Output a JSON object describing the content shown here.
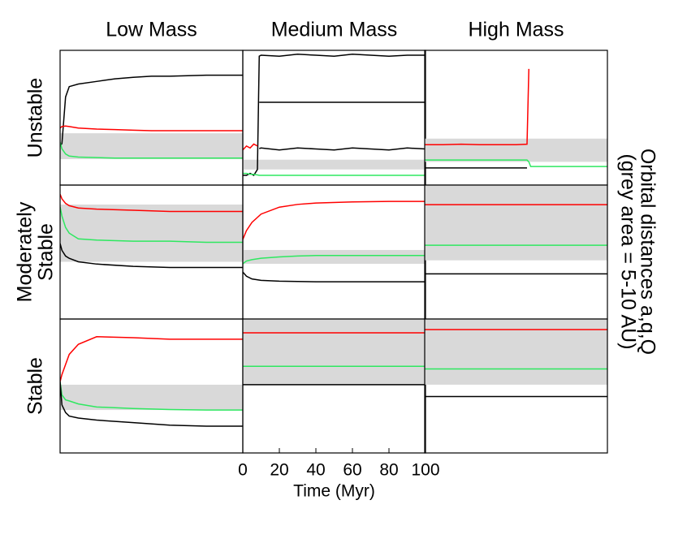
{
  "figure": {
    "column_titles": [
      "Low Mass",
      "Medium Mass",
      "High Mass"
    ],
    "row_titles": [
      [
        "Unstable"
      ],
      [
        "Moderately",
        "Stable"
      ],
      [
        "Stable"
      ]
    ],
    "side_label": [
      "Orbital distances a,q,Q",
      "(grey area = 5-10 AU)"
    ]
  },
  "chart_data": [
    {
      "type": "line",
      "x": [
        0,
        1,
        3,
        5,
        10,
        20,
        30,
        40,
        50,
        60,
        70,
        80,
        90,
        100
      ],
      "xlim": [
        0,
        100
      ],
      "ylim": [
        0,
        26
      ],
      "band": [
        5,
        10
      ],
      "series": [
        {
          "color": "#000000",
          "values": [
            7.5,
            8,
            17,
            19,
            19.5,
            20,
            20.5,
            20.8,
            21,
            21,
            21.1,
            21.2,
            21.2,
            21.2
          ]
        },
        {
          "color": "#ff0000",
          "values": [
            11,
            11.3,
            11.4,
            11.3,
            11,
            10.8,
            10.7,
            10.6,
            10.5,
            10.5,
            10.5,
            10.5,
            10.5,
            10.5
          ]
        },
        {
          "color": "#2ee860",
          "values": [
            8.3,
            7,
            6,
            5.6,
            5.4,
            5.3,
            5.2,
            5.2,
            5.2,
            5.2,
            5.2,
            5.2,
            5.2,
            5.2
          ]
        }
      ]
    },
    {
      "type": "line",
      "x": [
        0,
        2,
        4,
        6,
        8,
        9,
        10,
        20,
        30,
        40,
        50,
        60,
        70,
        80,
        90,
        100
      ],
      "xlim": [
        0,
        100
      ],
      "ylim": [
        -3,
        66
      ],
      "band": [
        5,
        10
      ],
      "series": [
        {
          "color": "#000000",
          "values": [
            2,
            2,
            3,
            2,
            5,
            63,
            63.5,
            63,
            64,
            63.5,
            63,
            64,
            63.5,
            63,
            63.5,
            63.5
          ]
        },
        {
          "color": "#000000",
          "values": [
            null,
            null,
            null,
            null,
            null,
            39.4,
            39.4,
            39.4,
            39.4,
            39.4,
            39.4,
            39.4,
            39.4,
            39.4,
            39.4,
            39.4
          ]
        },
        {
          "color": "#000000",
          "values": [
            null,
            null,
            null,
            null,
            null,
            15.7,
            16,
            15,
            16,
            15.5,
            15,
            16,
            15.5,
            15,
            16,
            15.5
          ]
        },
        {
          "color": "#ff0000",
          "values": [
            15,
            17,
            16,
            18,
            17,
            null,
            null,
            null,
            null,
            null,
            null,
            null,
            null,
            null,
            null,
            null
          ]
        },
        {
          "color": "#2ee860",
          "values": [
            3,
            3,
            2.5,
            2.5,
            2.2,
            2,
            2,
            2,
            2,
            2,
            2,
            2,
            2,
            2,
            2,
            2
          ]
        }
      ]
    },
    {
      "type": "line",
      "x": [
        0,
        10,
        20,
        30,
        40,
        50,
        56,
        57,
        58,
        60,
        70,
        80,
        90,
        100
      ],
      "xlim": [
        0,
        100
      ],
      "ylim": [
        0,
        29
      ],
      "band": [
        5,
        10
      ],
      "series": [
        {
          "color": "#ff0000",
          "values": [
            8.7,
            8.7,
            8.8,
            8.7,
            8.7,
            8.7,
            8.8,
            25,
            null,
            null,
            null,
            null,
            null,
            null
          ]
        },
        {
          "color": "#2ee860",
          "values": [
            5.4,
            5.4,
            5.4,
            5.4,
            5.4,
            5.4,
            5.4,
            5,
            4,
            4,
            4,
            4,
            4,
            4
          ]
        },
        {
          "color": "#000000",
          "values": [
            3.7,
            3.7,
            3.7,
            3.7,
            3.7,
            3.7,
            3.7,
            null,
            null,
            null,
            null,
            null,
            null,
            null
          ]
        }
      ]
    },
    {
      "type": "line",
      "x": [
        0,
        1,
        3,
        5,
        10,
        20,
        40,
        60,
        80,
        100
      ],
      "xlim": [
        0,
        100
      ],
      "ylim": [
        0,
        11.7
      ],
      "band": [
        5,
        10
      ],
      "series": [
        {
          "color": "#ff0000",
          "values": [
            10.9,
            10.5,
            10.1,
            9.9,
            9.7,
            9.6,
            9.5,
            9.4,
            9.4,
            9.4
          ]
        },
        {
          "color": "#2ee860",
          "values": [
            9.8,
            9,
            8,
            7.5,
            7,
            6.9,
            6.8,
            6.8,
            6.7,
            6.7
          ]
        },
        {
          "color": "#000000",
          "values": [
            6.6,
            6,
            5.5,
            5.3,
            5,
            4.8,
            4.6,
            4.5,
            4.5,
            4.5
          ]
        }
      ]
    },
    {
      "type": "line",
      "x": [
        0,
        2,
        5,
        10,
        20,
        30,
        40,
        60,
        80,
        100
      ],
      "xlim": [
        0,
        100
      ],
      "ylim": [
        -15,
        33.5
      ],
      "band": [
        5,
        10
      ],
      "series": [
        {
          "color": "#ff0000",
          "values": [
            13.8,
            17,
            20,
            23,
            25.5,
            26.5,
            27,
            27.4,
            27.6,
            27.6
          ]
        },
        {
          "color": "#2ee860",
          "values": [
            5,
            6,
            6.5,
            7,
            7.5,
            7.8,
            8,
            8,
            8,
            8
          ]
        },
        {
          "color": "#000000",
          "values": [
            2,
            0.5,
            -0.5,
            -1,
            -1.3,
            -1.4,
            -1.5,
            -1.5,
            -1.5,
            -1.5
          ]
        }
      ]
    },
    {
      "type": "line",
      "x": [
        0,
        20,
        40,
        60,
        80,
        100
      ],
      "xlim": [
        0,
        100
      ],
      "ylim": [
        1.1,
        10
      ],
      "band": [
        5,
        10
      ],
      "series": [
        {
          "color": "#ff0000",
          "values": [
            8.7,
            8.7,
            8.7,
            8.7,
            8.7,
            8.7
          ]
        },
        {
          "color": "#2ee860",
          "values": [
            6,
            6,
            6,
            6,
            6,
            6
          ]
        },
        {
          "color": "#000000",
          "values": [
            4.1,
            4.1,
            4.1,
            4.1,
            4.1,
            4.1
          ]
        }
      ]
    },
    {
      "type": "line",
      "x": [
        0,
        1,
        3,
        5,
        10,
        20,
        40,
        60,
        80,
        100
      ],
      "xlim": [
        0,
        100
      ],
      "ylim": [
        -3.5,
        23
      ],
      "band": [
        5,
        10
      ],
      "series": [
        {
          "color": "#ff0000",
          "values": [
            10.6,
            12,
            14,
            16,
            18,
            19.5,
            19.3,
            19,
            19,
            19
          ]
        },
        {
          "color": "#2ee860",
          "values": [
            10.6,
            8,
            7,
            6.8,
            6.2,
            5.6,
            5.3,
            5.1,
            5,
            5
          ]
        },
        {
          "color": "#000000",
          "values": [
            10.6,
            6,
            4.5,
            3.8,
            3.4,
            3,
            2.5,
            2,
            1.8,
            1.8
          ]
        }
      ]
    },
    {
      "type": "line",
      "x": [
        0,
        100
      ],
      "xlim": [
        0,
        100
      ],
      "ylim": [
        -0.2,
        10
      ],
      "band": [
        5,
        10
      ],
      "xticks": [
        0,
        20,
        40,
        60,
        80,
        100
      ],
      "xlabel": "Time (Myr)",
      "series": [
        {
          "color": "#ff0000",
          "values": [
            8.95,
            8.95
          ]
        },
        {
          "color": "#2ee860",
          "values": [
            6.4,
            6.4
          ]
        },
        {
          "color": "#000000",
          "values": [
            5,
            5
          ]
        }
      ]
    },
    {
      "type": "line",
      "x": [
        0,
        100
      ],
      "xlim": [
        0,
        100
      ],
      "ylim": [
        -0.2,
        10
      ],
      "band": [
        5,
        10
      ],
      "series": [
        {
          "color": "#ff0000",
          "values": [
            9.2,
            9.2
          ]
        },
        {
          "color": "#2ee860",
          "values": [
            6.2,
            6.2
          ]
        },
        {
          "color": "#000000",
          "values": [
            4.1,
            4.1
          ]
        }
      ]
    }
  ]
}
